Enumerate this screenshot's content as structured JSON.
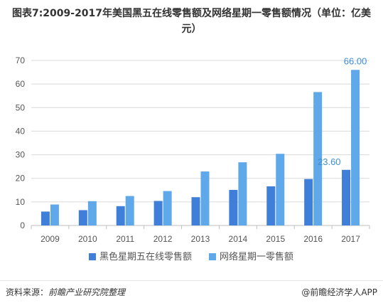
{
  "chart_data": {
    "type": "bar",
    "title": "图表7:2009-2017年美国黑五在线零售额及网络星期一零售额情况（单位：亿美元）",
    "categories": [
      "2009",
      "2010",
      "2011",
      "2012",
      "2013",
      "2014",
      "2015",
      "2016",
      "2017"
    ],
    "series": [
      {
        "name": "黑色星期五在线零售额",
        "values": [
          5.9,
          6.5,
          8.2,
          10.4,
          12.0,
          15.1,
          16.6,
          19.7,
          23.6
        ]
      },
      {
        "name": "网络星期一零售额",
        "values": [
          8.9,
          10.3,
          12.5,
          14.6,
          22.9,
          26.8,
          30.4,
          56.6,
          66.0
        ]
      }
    ],
    "data_labels": [
      "23.60",
      "66.00"
    ],
    "ylim": [
      0,
      70
    ],
    "yticks": [
      "0",
      "10",
      "20",
      "30",
      "40",
      "50",
      "60",
      "70"
    ],
    "grid": true,
    "legend_position": "bottom",
    "colors": {
      "series1": "#3f7fd9",
      "series2": "#5fa8ea",
      "label": "#3b8fd5",
      "grid": "#d9d9d9"
    }
  },
  "footer": {
    "source_label": "资料来源：",
    "source_text": "前瞻产业研究院整理",
    "brand": "@前瞻经济学人APP"
  }
}
